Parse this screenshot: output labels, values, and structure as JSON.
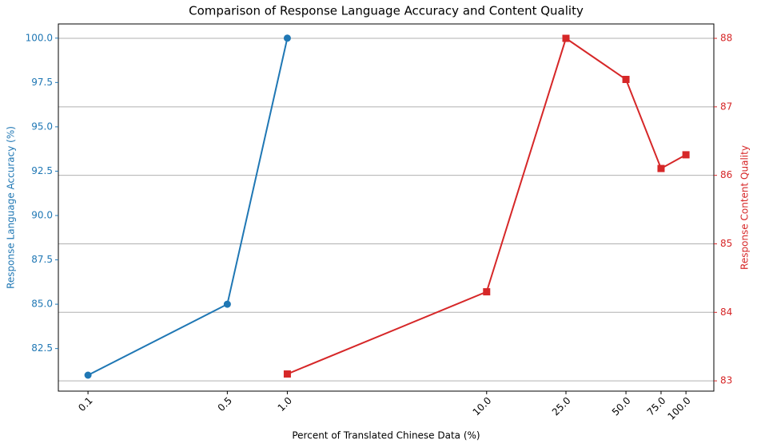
{
  "chart_data": {
    "type": "line",
    "title": "Comparison of Response Language Accuracy and Content Quality",
    "x_label": "Percent of Translated Chinese Data (%)",
    "y_label": "Response Language Accuracy (%)",
    "y2_label": "Response Content Quality",
    "x_scale": "log",
    "xlim": [
      0.071,
      138
    ],
    "xticks": [
      0.1,
      0.5,
      {
        "value": 1,
        "label": "1.0"
      },
      {
        "value": 10,
        "label": "10.0"
      },
      {
        "value": 25,
        "label": "25.0"
      },
      {
        "value": 50,
        "label": "50.0"
      },
      {
        "value": 75,
        "label": "75.0"
      },
      {
        "value": 100,
        "label": "100.0"
      }
    ],
    "ylim": [
      80.1,
      100.8
    ],
    "yticks": [
      82.5,
      {
        "value": 85,
        "label": "85.0"
      },
      87.5,
      {
        "value": 90,
        "label": "90.0"
      },
      92.5,
      {
        "value": 95,
        "label": "95.0"
      },
      97.5,
      {
        "value": 100,
        "label": "100.0"
      }
    ],
    "y2lim": [
      82.85,
      88.21
    ],
    "y2ticks": [
      83,
      84,
      85,
      86,
      87,
      88
    ],
    "grid": "y2",
    "series": [
      {
        "name": "Response Language Accuracy",
        "color": "#1f77b4",
        "marker": "circle",
        "x": [
          0.1,
          0.5,
          1
        ],
        "values": [
          81,
          85,
          100
        ]
      },
      {
        "name": "Response Content Quality",
        "color": "#d62728",
        "marker": "square",
        "axis": "y2",
        "x": [
          1,
          10,
          25,
          50,
          75,
          100
        ],
        "values": [
          83.1,
          84.3,
          88,
          87.4,
          86.1,
          86.3
        ]
      }
    ]
  }
}
